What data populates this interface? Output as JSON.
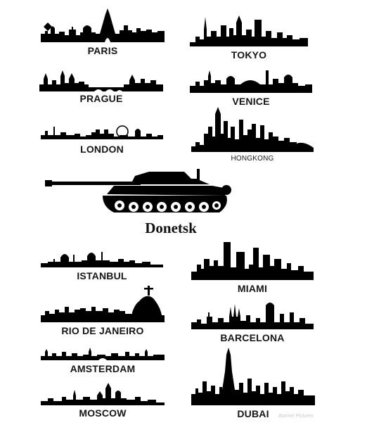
{
  "cities": {
    "paris": "PARIS",
    "tokyo": "TOKYO",
    "prague": "PRAGUE",
    "venice": "VENICE",
    "london": "LONDON",
    "hongkong": "HONGKONG",
    "istanbul": "ISTANBUL",
    "miami": "MIAMI",
    "rio": "RIO DE JANEIRO",
    "barcelona": "BARCELONA",
    "amsterdam": "AMSTERDAM",
    "dubai": "DUBAI",
    "moscow": "MOSCOW"
  },
  "center": {
    "title": "Donetsk"
  },
  "watermark": "Banner Pictures",
  "icons": {
    "tank": "tank-silhouette-icon",
    "skyline": "city-skyline-silhouette"
  },
  "colors": {
    "silhouette": "#000000",
    "background": "#ffffff"
  }
}
